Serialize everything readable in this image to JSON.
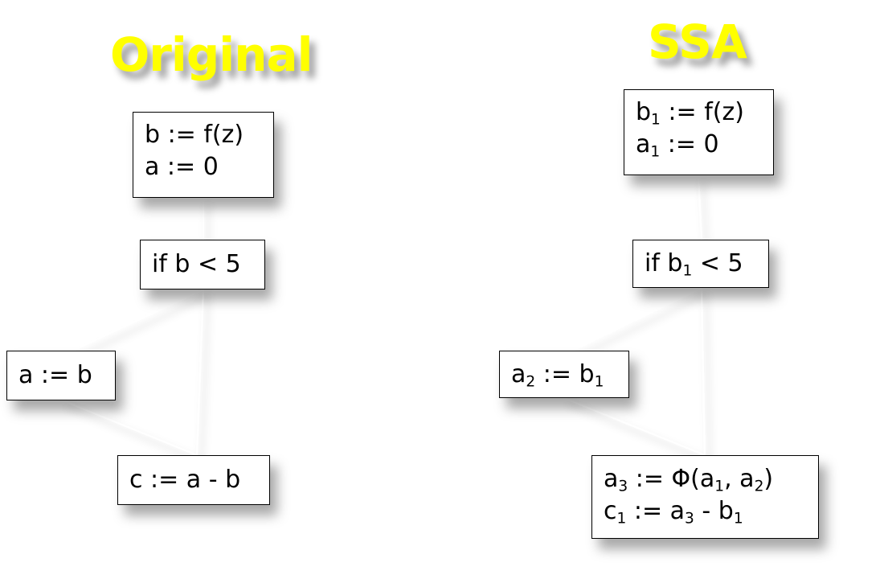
{
  "colors": {
    "title": "#ffff00",
    "edge": "#ffffff",
    "border": "#000000"
  },
  "diagrams": {
    "original": {
      "title": "Original",
      "nodes": {
        "entry": {
          "lines": [
            "b := f(z)",
            "a := 0"
          ]
        },
        "branch": {
          "lines": [
            "if b < 5"
          ]
        },
        "assign": {
          "lines": [
            "a := b"
          ]
        },
        "merge": {
          "lines": [
            "c := a - b"
          ]
        }
      },
      "edges": [
        [
          "entry",
          "branch"
        ],
        [
          "branch",
          "assign"
        ],
        [
          "branch",
          "merge"
        ],
        [
          "assign",
          "merge"
        ]
      ]
    },
    "ssa": {
      "title": "SSA",
      "nodes": {
        "entry": {
          "lines": [
            "b_1 := f(z)",
            "a_1 := 0"
          ]
        },
        "branch": {
          "lines": [
            "if b_1 < 5"
          ]
        },
        "assign": {
          "lines": [
            "a_2 := b_1"
          ]
        },
        "merge": {
          "lines": [
            "a_3 := Φ(a_1, a_2)",
            "c_1 := a_3 - b_1"
          ]
        }
      },
      "edges": [
        [
          "entry",
          "branch"
        ],
        [
          "branch",
          "assign"
        ],
        [
          "branch",
          "merge"
        ],
        [
          "assign",
          "merge"
        ]
      ]
    }
  }
}
